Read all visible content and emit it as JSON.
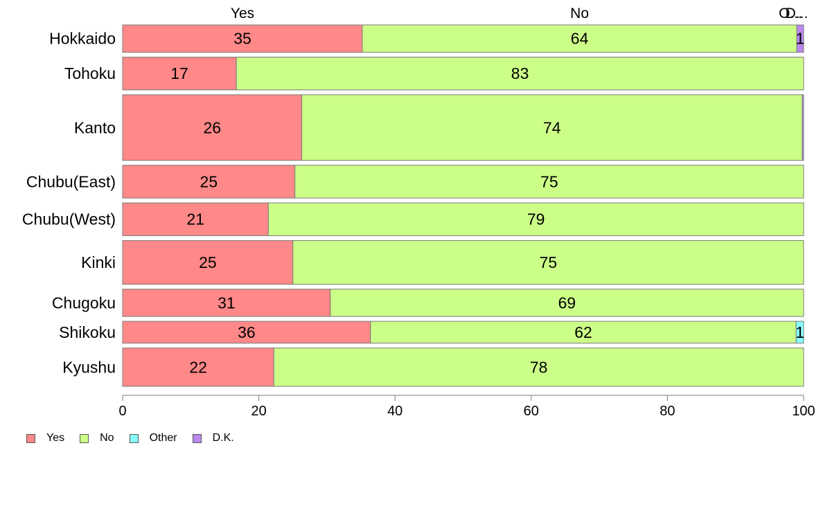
{
  "chart_data": {
    "type": "bar",
    "orientation": "horizontal",
    "stacked": true,
    "categories": [
      "Hokkaido",
      "Tohoku",
      "Kanto",
      "Chubu(East)",
      "Chubu(West)",
      "Kinki",
      "Chugoku",
      "Shikoku",
      "Kyushu"
    ],
    "category_weights": [
      5,
      6,
      12,
      6,
      6,
      8,
      5,
      4,
      7
    ],
    "series": [
      {
        "name": "Yes",
        "color": "#ff8888",
        "values": [
          35.2,
          16.7,
          26.3,
          25.3,
          21.4,
          25.0,
          30.5,
          36.4,
          22.2
        ]
      },
      {
        "name": "No",
        "color": "#ccff88",
        "values": [
          63.8,
          83.3,
          73.5,
          74.7,
          78.6,
          75.0,
          69.5,
          62.5,
          77.8
        ]
      },
      {
        "name": "Other",
        "color": "#88ffff",
        "values": [
          0,
          0,
          0,
          0,
          0,
          0,
          0,
          1.1,
          0
        ]
      },
      {
        "name": "D.K.",
        "color": "#bb88ee",
        "values": [
          1.0,
          0,
          0.2,
          0,
          0,
          0,
          0,
          0,
          0
        ]
      }
    ],
    "data_labels": [
      [
        "35",
        "64",
        "",
        "1"
      ],
      [
        "17",
        "83",
        "",
        ""
      ],
      [
        "26",
        "74",
        "",
        ""
      ],
      [
        "25",
        "75",
        "",
        ""
      ],
      [
        "21",
        "79",
        "",
        ""
      ],
      [
        "25",
        "75",
        "",
        ""
      ],
      [
        "31",
        "69",
        "",
        ""
      ],
      [
        "36",
        "62",
        "1",
        ""
      ],
      [
        "22",
        "78",
        "",
        ""
      ]
    ],
    "top_labels": [
      "Yes",
      "No",
      "O...",
      "D..."
    ],
    "xlim": [
      0,
      100
    ],
    "xticks": [
      0,
      20,
      40,
      60,
      80,
      100
    ],
    "grid": false,
    "legend": {
      "position": "bottom-left",
      "entries": [
        "Yes",
        "No",
        "Other",
        "D.K."
      ]
    }
  }
}
